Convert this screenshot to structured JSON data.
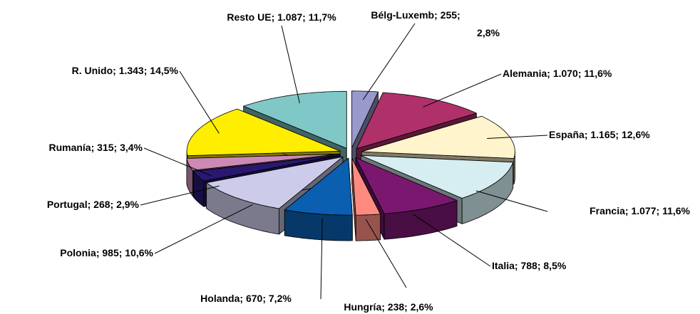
{
  "chart_data": {
    "type": "pie3d",
    "categories": [
      "Bélg-Luxemb",
      "Alemania",
      "España",
      "Francia",
      "Italia",
      "Hungría",
      "Holanda",
      "Polonia",
      "Portugal",
      "Rumanía",
      "R. Unido",
      "Resto UE"
    ],
    "values": [
      255,
      1070,
      1165,
      1077,
      788,
      238,
      670,
      985,
      268,
      315,
      1343,
      1087
    ],
    "value_labels": [
      "255",
      "1.070",
      "1.165",
      "1.077",
      "788",
      "238",
      "670",
      "985",
      "268",
      "315",
      "1.343",
      "1.087"
    ],
    "percents": [
      2.8,
      11.6,
      12.6,
      11.6,
      8.5,
      2.6,
      7.2,
      10.6,
      2.9,
      3.4,
      14.5,
      11.7
    ],
    "percent_labels": [
      "2,8%",
      "11,6%",
      "12,6%",
      "11,6%",
      "8,5%",
      "2,6%",
      "7,2%",
      "10,6%",
      "2,9%",
      "3,4%",
      "14,5%",
      "11,7%"
    ],
    "label_separator": "; ",
    "colors": [
      "#9999cc",
      "#b0306a",
      "#fff4cc",
      "#d6eef2",
      "#7a1870",
      "#ff8a80",
      "#0a5fb0",
      "#ccccea",
      "#2a1870",
      "#cc8ab4",
      "#ffee00",
      "#80c8c8"
    ]
  }
}
